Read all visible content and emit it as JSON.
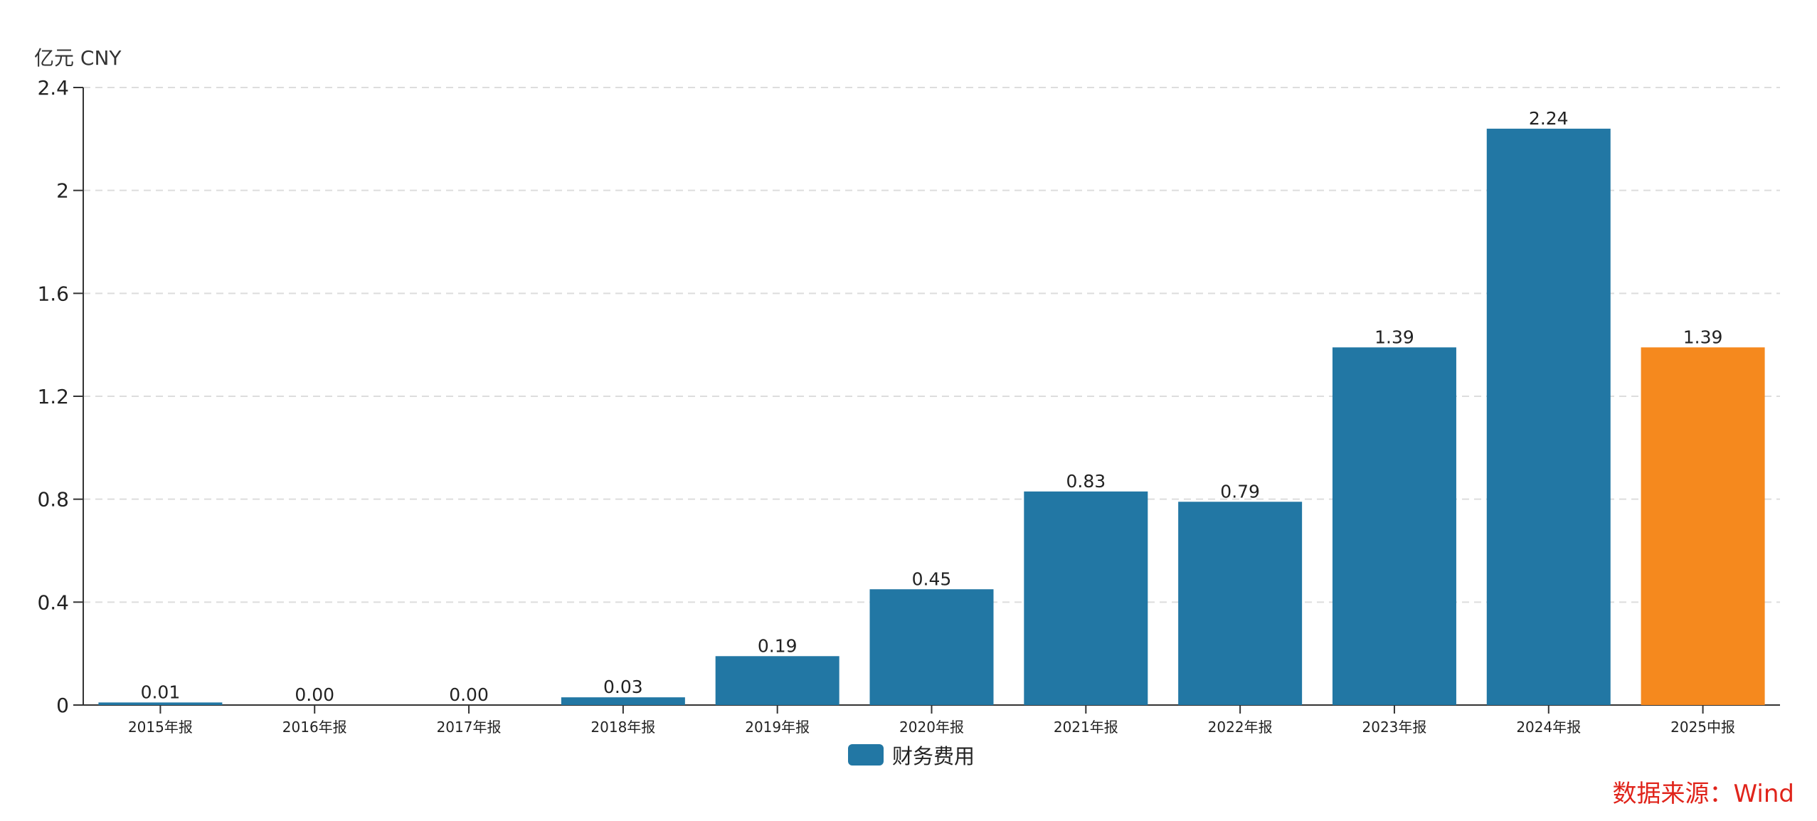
{
  "chart_data": {
    "type": "bar",
    "unit_label": "亿元  CNY",
    "categories": [
      "2015年报",
      "2016年报",
      "2017年报",
      "2018年报",
      "2019年报",
      "2020年报",
      "2021年报",
      "2022年报",
      "2023年报",
      "2024年报",
      "2025中报"
    ],
    "series": [
      {
        "name": "财务费用",
        "values": [
          0.01,
          0.0,
          0.0,
          0.03,
          0.19,
          0.45,
          0.83,
          0.79,
          1.39,
          2.24,
          1.39
        ],
        "labels": [
          "0.01",
          "0.00",
          "0.00",
          "0.03",
          "0.19",
          "0.45",
          "0.83",
          "0.79",
          "1.39",
          "2.24",
          "1.39"
        ]
      }
    ],
    "highlight_index": 10,
    "ylim": [
      0,
      2.4
    ],
    "yticks": [
      "0",
      "0.4",
      "0.8",
      "1.2",
      "1.6",
      "2",
      "2.4"
    ],
    "ytick_values": [
      0,
      0.4,
      0.8,
      1.2,
      1.6,
      2.0,
      2.4
    ],
    "grid": true,
    "legend_position": "bottom-center",
    "colors": {
      "bar": "#2277a4",
      "highlight": "#f5891e",
      "grid": "#dddddd",
      "axis": "#333333",
      "source": "#e0241b"
    }
  },
  "source_text": "数据来源：Wind"
}
